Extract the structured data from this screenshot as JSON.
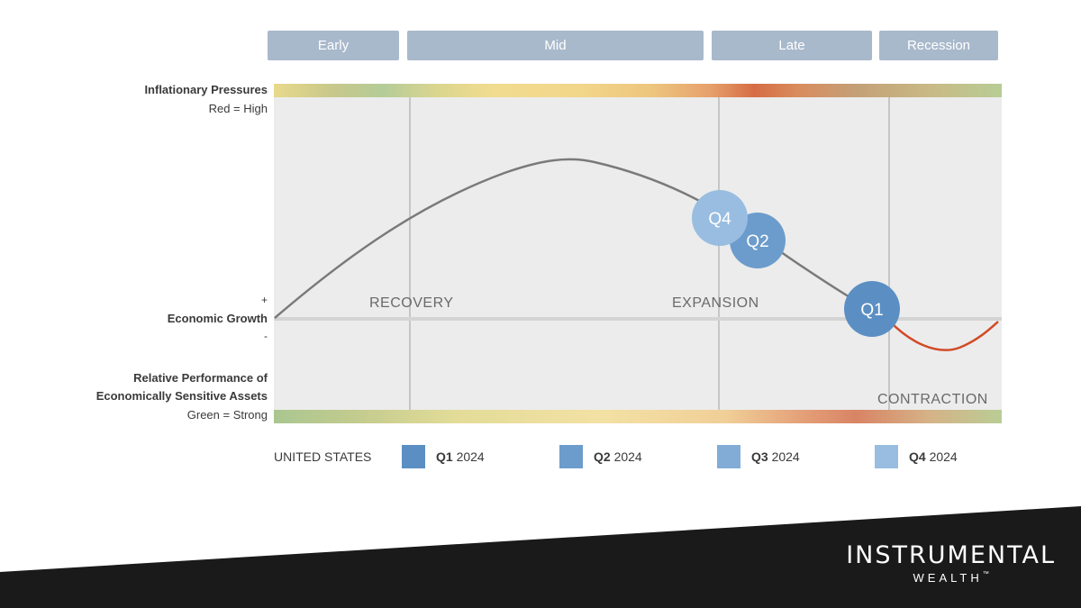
{
  "phases": {
    "early": "Early",
    "mid": "Mid",
    "late": "Late",
    "recession": "Recession"
  },
  "labels": {
    "inflation_title": "Inflationary Pressures",
    "inflation_sub": "Red = High",
    "plus": "+",
    "growth": "Economic Growth",
    "minus": "-",
    "perf_line1": "Relative Performance of",
    "perf_line2": "Economically Sensitive Assets",
    "perf_sub": "Green = Strong"
  },
  "regions": {
    "recovery": "RECOVERY",
    "expansion": "EXPANSION",
    "contraction": "CONTRACTION"
  },
  "markers": {
    "q4": "Q4",
    "q2": "Q2",
    "q1": "Q1"
  },
  "legend": {
    "country": "UNITED STATES",
    "items": [
      {
        "q": "Q1",
        "year": "2024",
        "color": "#5b8fc3"
      },
      {
        "q": "Q2",
        "year": "2024",
        "color": "#6c9ccc"
      },
      {
        "q": "Q3",
        "year": "2024",
        "color": "#82acd6"
      },
      {
        "q": "Q4",
        "year": "2024",
        "color": "#98bde0"
      }
    ]
  },
  "brand": {
    "name": "INSTRUMENTAL",
    "sub": "WEALTH",
    "tm": "™"
  },
  "colors": {
    "tab": "#a9b9cc",
    "curve": "#7a7a7a",
    "recession_curve": "#d24a26",
    "footer": "#1a1a1a"
  }
}
